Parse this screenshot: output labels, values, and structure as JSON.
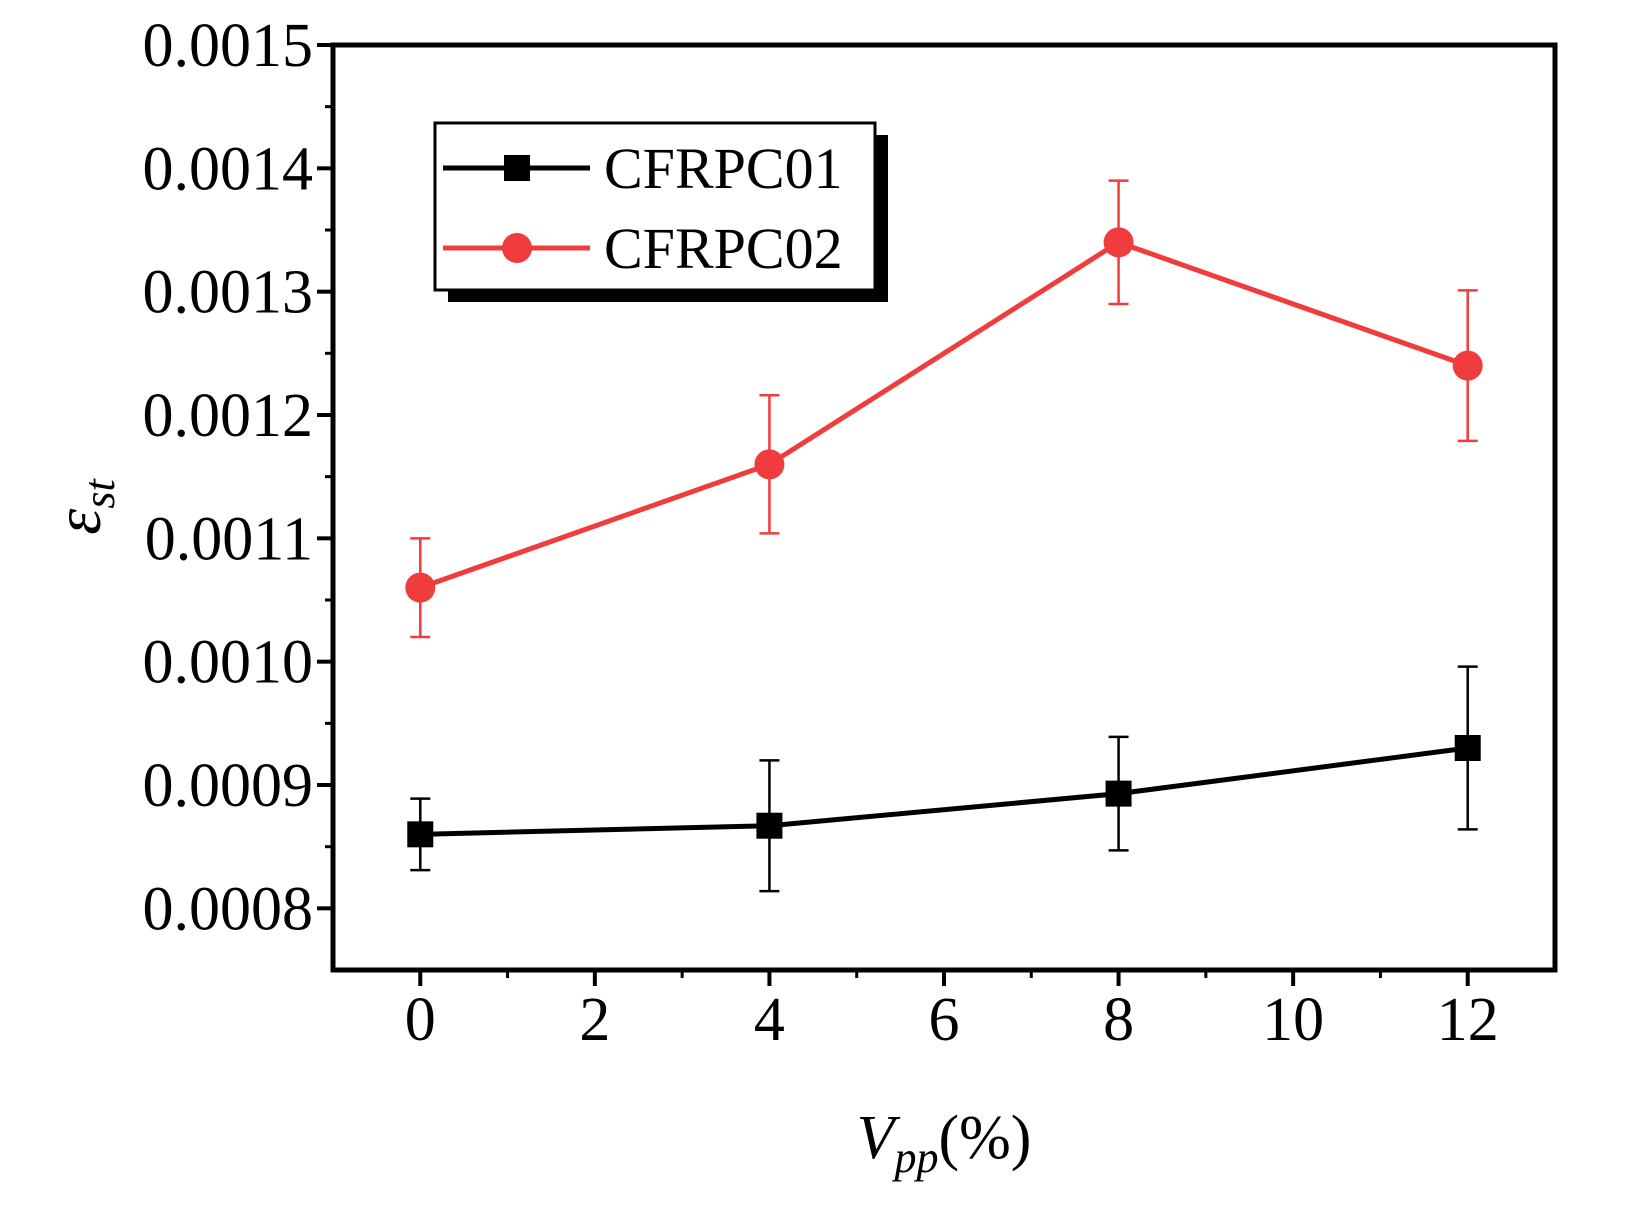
{
  "chart_data": {
    "type": "line",
    "title": "",
    "xlabel": {
      "main": "V",
      "sub": "pp",
      "suffix": "(%)"
    },
    "ylabel": {
      "main": "ε",
      "sub": "st"
    },
    "x": [
      0,
      4,
      8,
      12
    ],
    "xlim": [
      -1,
      13
    ],
    "ylim": [
      0.00075,
      0.0015
    ],
    "xticks": [
      {
        "value": 0,
        "label": "0"
      },
      {
        "value": 2,
        "label": "2"
      },
      {
        "value": 4,
        "label": "4"
      },
      {
        "value": 6,
        "label": "6"
      },
      {
        "value": 8,
        "label": "8"
      },
      {
        "value": 10,
        "label": "10"
      },
      {
        "value": 12,
        "label": "12"
      }
    ],
    "yticks": [
      {
        "value": 0.0008,
        "label": "0.0008"
      },
      {
        "value": 0.0009,
        "label": "0.0009"
      },
      {
        "value": 0.001,
        "label": "0.0010"
      },
      {
        "value": 0.0011,
        "label": "0.0011"
      },
      {
        "value": 0.0012,
        "label": "0.0012"
      },
      {
        "value": 0.0013,
        "label": "0.0013"
      },
      {
        "value": 0.0014,
        "label": "0.0014"
      },
      {
        "value": 0.0015,
        "label": "0.0015"
      }
    ],
    "grid": false,
    "legend_position": "top-left",
    "series": [
      {
        "name": "CFRPC01",
        "color": "#000000",
        "marker": "square",
        "values": [
          0.00086,
          0.000867,
          0.000893,
          0.00093
        ],
        "errors": [
          2.9e-05,
          5.3e-05,
          4.6e-05,
          6.6e-05
        ]
      },
      {
        "name": "CFRPC02",
        "color": "#f03c3c",
        "marker": "circle",
        "values": [
          0.00106,
          0.00116,
          0.00134,
          0.00124
        ],
        "errors": [
          4e-05,
          5.6e-05,
          5e-05,
          6.1e-05
        ]
      }
    ]
  }
}
